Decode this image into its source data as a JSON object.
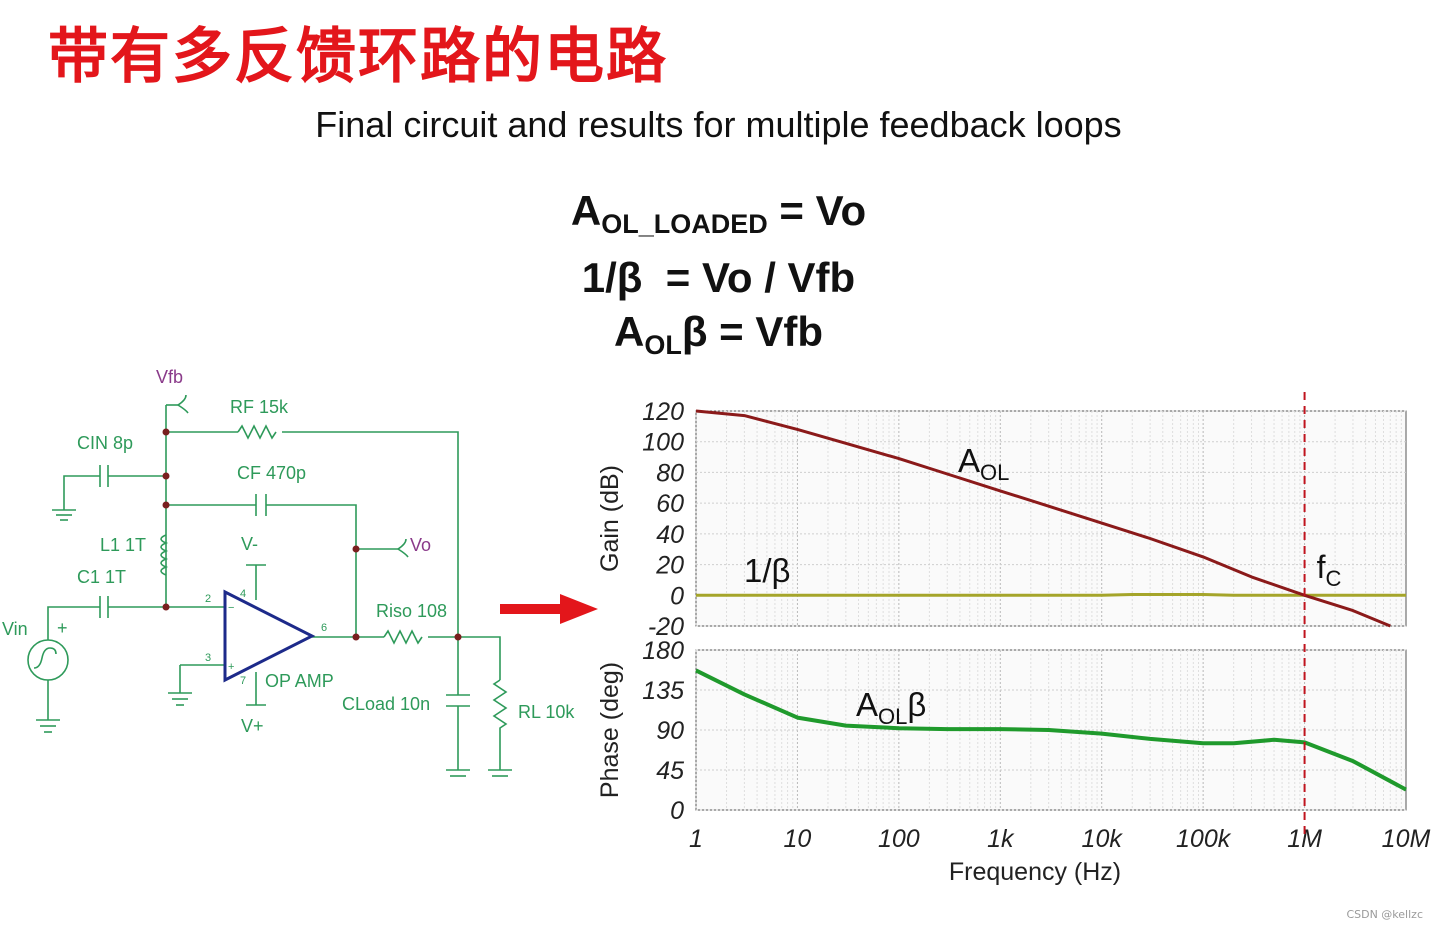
{
  "title_cn": "带有多反馈环路的电路",
  "subtitle": "Final circuit and results for multiple feedback loops",
  "equations": [
    {
      "main": "A",
      "sub": "OL_LOADED",
      "rhs": " = Vo"
    },
    {
      "main": "1/β",
      "sub": "",
      "rhs": "  = Vo / Vfb"
    },
    {
      "main": "A",
      "sub": "OL",
      "rhs": "β = Vfb"
    }
  ],
  "circuit": {
    "vfb": "Vfb",
    "rf": "RF 15k",
    "cin": "CIN 8p",
    "cf": "CF 470p",
    "l1": "L1 1T",
    "c1": "C1 1T",
    "vminus": "V-",
    "vplus": "V+",
    "vo": "Vo",
    "riso": "Riso 108",
    "opamp": "OP AMP",
    "cload": "CLoad 10n",
    "rl": "RL 10k",
    "vin": "Vin",
    "pin2": "2",
    "pin3": "3",
    "pin6": "6",
    "pin4": "4",
    "pin7": "7",
    "plus": "+",
    "minus": "−"
  },
  "colors": {
    "title": "#e3161b",
    "circuit": "#2e9a5a",
    "opamp": "#1d2a8a",
    "aol": "#8b1a1a",
    "beta": "#a5a52a",
    "phase": "#1f9a2c",
    "marker": "#c0141e",
    "arrow": "#e3161b"
  },
  "chart_data": {
    "type": "line",
    "x_scale": "log",
    "xlabel": "Frequency (Hz)",
    "x_ticks": [
      "1",
      "10",
      "100",
      "1k",
      "10k",
      "100k",
      "1M",
      "10M"
    ],
    "x_tick_values": [
      1,
      10,
      100,
      1000,
      10000,
      100000,
      1000000,
      10000000
    ],
    "marker_x": 1000000,
    "marker_label": {
      "main": "f",
      "sub": "C"
    },
    "gain": {
      "ylabel": "Gain (dB)",
      "ylim": [
        -20,
        120
      ],
      "y_ticks": [
        "120",
        "100",
        "80",
        "60",
        "40",
        "20",
        "0",
        "-20"
      ],
      "y_tick_values": [
        120,
        100,
        80,
        60,
        40,
        20,
        0,
        -20
      ],
      "series": [
        {
          "label_main": "A",
          "label_sub": "OL",
          "x": [
            1,
            3,
            10,
            30,
            100,
            300,
            1000,
            3000,
            10000,
            30000,
            100000,
            300000,
            1000000,
            3000000,
            7000000
          ],
          "y": [
            120,
            117,
            108,
            99,
            89,
            79,
            68,
            58,
            47,
            37,
            25,
            12,
            0,
            -10,
            -20
          ]
        },
        {
          "label_main": "1/β",
          "label_sub": "",
          "x": [
            1,
            10000,
            20000,
            100000,
            200000,
            1000000,
            10000000
          ],
          "y": [
            0,
            0,
            0.5,
            0.5,
            0,
            0,
            0
          ]
        }
      ]
    },
    "phase": {
      "ylabel": "Phase (deg)",
      "ylim": [
        0,
        180
      ],
      "y_ticks": [
        "180",
        "135",
        "90",
        "45",
        "0"
      ],
      "y_tick_values": [
        180,
        135,
        90,
        45,
        0
      ],
      "series": [
        {
          "label_main": "A",
          "label_sub": "OL",
          "label_tail": "β",
          "x": [
            1,
            3,
            10,
            30,
            100,
            300,
            1000,
            3000,
            10000,
            30000,
            100000,
            200000,
            500000,
            1000000,
            3000000,
            10000000
          ],
          "y": [
            157,
            130,
            104,
            95,
            92,
            91,
            91,
            90,
            86,
            80,
            75,
            75,
            79,
            76,
            55,
            23
          ]
        }
      ]
    }
  }
}
